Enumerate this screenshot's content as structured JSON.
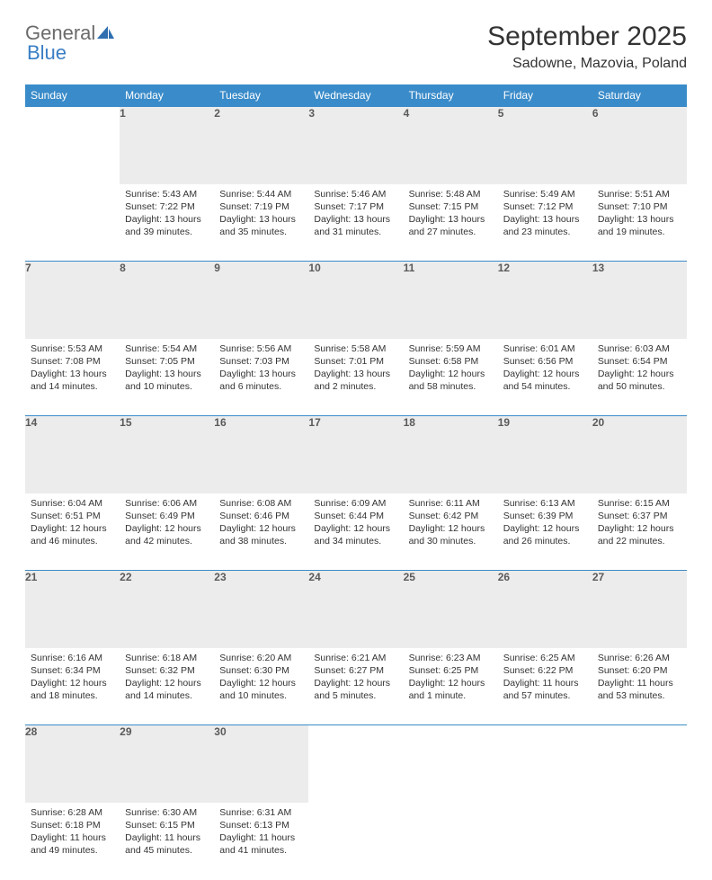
{
  "logo": {
    "part1": "General",
    "part2": "Blue"
  },
  "title": "September 2025",
  "location": "Sadowne, Mazovia, Poland",
  "colors": {
    "header_bg": "#3a8bc9",
    "header_text": "#ffffff",
    "daynum_bg": "#ececec",
    "daynum_text": "#5a5a5a",
    "body_text": "#333333",
    "border": "#3a8bc9",
    "logo_gray": "#6b6b6b",
    "logo_blue": "#3a7fc4"
  },
  "typography": {
    "title_fontsize": 30,
    "location_fontsize": 16,
    "weekday_fontsize": 12,
    "daynum_fontsize": 12,
    "cell_fontsize": 10.5
  },
  "weekdays": [
    "Sunday",
    "Monday",
    "Tuesday",
    "Wednesday",
    "Thursday",
    "Friday",
    "Saturday"
  ],
  "weeks": [
    {
      "nums": [
        "",
        "1",
        "2",
        "3",
        "4",
        "5",
        "6"
      ],
      "cells": [
        null,
        {
          "sunrise": "Sunrise: 5:43 AM",
          "sunset": "Sunset: 7:22 PM",
          "day1": "Daylight: 13 hours",
          "day2": "and 39 minutes."
        },
        {
          "sunrise": "Sunrise: 5:44 AM",
          "sunset": "Sunset: 7:19 PM",
          "day1": "Daylight: 13 hours",
          "day2": "and 35 minutes."
        },
        {
          "sunrise": "Sunrise: 5:46 AM",
          "sunset": "Sunset: 7:17 PM",
          "day1": "Daylight: 13 hours",
          "day2": "and 31 minutes."
        },
        {
          "sunrise": "Sunrise: 5:48 AM",
          "sunset": "Sunset: 7:15 PM",
          "day1": "Daylight: 13 hours",
          "day2": "and 27 minutes."
        },
        {
          "sunrise": "Sunrise: 5:49 AM",
          "sunset": "Sunset: 7:12 PM",
          "day1": "Daylight: 13 hours",
          "day2": "and 23 minutes."
        },
        {
          "sunrise": "Sunrise: 5:51 AM",
          "sunset": "Sunset: 7:10 PM",
          "day1": "Daylight: 13 hours",
          "day2": "and 19 minutes."
        }
      ]
    },
    {
      "nums": [
        "7",
        "8",
        "9",
        "10",
        "11",
        "12",
        "13"
      ],
      "cells": [
        {
          "sunrise": "Sunrise: 5:53 AM",
          "sunset": "Sunset: 7:08 PM",
          "day1": "Daylight: 13 hours",
          "day2": "and 14 minutes."
        },
        {
          "sunrise": "Sunrise: 5:54 AM",
          "sunset": "Sunset: 7:05 PM",
          "day1": "Daylight: 13 hours",
          "day2": "and 10 minutes."
        },
        {
          "sunrise": "Sunrise: 5:56 AM",
          "sunset": "Sunset: 7:03 PM",
          "day1": "Daylight: 13 hours",
          "day2": "and 6 minutes."
        },
        {
          "sunrise": "Sunrise: 5:58 AM",
          "sunset": "Sunset: 7:01 PM",
          "day1": "Daylight: 13 hours",
          "day2": "and 2 minutes."
        },
        {
          "sunrise": "Sunrise: 5:59 AM",
          "sunset": "Sunset: 6:58 PM",
          "day1": "Daylight: 12 hours",
          "day2": "and 58 minutes."
        },
        {
          "sunrise": "Sunrise: 6:01 AM",
          "sunset": "Sunset: 6:56 PM",
          "day1": "Daylight: 12 hours",
          "day2": "and 54 minutes."
        },
        {
          "sunrise": "Sunrise: 6:03 AM",
          "sunset": "Sunset: 6:54 PM",
          "day1": "Daylight: 12 hours",
          "day2": "and 50 minutes."
        }
      ]
    },
    {
      "nums": [
        "14",
        "15",
        "16",
        "17",
        "18",
        "19",
        "20"
      ],
      "cells": [
        {
          "sunrise": "Sunrise: 6:04 AM",
          "sunset": "Sunset: 6:51 PM",
          "day1": "Daylight: 12 hours",
          "day2": "and 46 minutes."
        },
        {
          "sunrise": "Sunrise: 6:06 AM",
          "sunset": "Sunset: 6:49 PM",
          "day1": "Daylight: 12 hours",
          "day2": "and 42 minutes."
        },
        {
          "sunrise": "Sunrise: 6:08 AM",
          "sunset": "Sunset: 6:46 PM",
          "day1": "Daylight: 12 hours",
          "day2": "and 38 minutes."
        },
        {
          "sunrise": "Sunrise: 6:09 AM",
          "sunset": "Sunset: 6:44 PM",
          "day1": "Daylight: 12 hours",
          "day2": "and 34 minutes."
        },
        {
          "sunrise": "Sunrise: 6:11 AM",
          "sunset": "Sunset: 6:42 PM",
          "day1": "Daylight: 12 hours",
          "day2": "and 30 minutes."
        },
        {
          "sunrise": "Sunrise: 6:13 AM",
          "sunset": "Sunset: 6:39 PM",
          "day1": "Daylight: 12 hours",
          "day2": "and 26 minutes."
        },
        {
          "sunrise": "Sunrise: 6:15 AM",
          "sunset": "Sunset: 6:37 PM",
          "day1": "Daylight: 12 hours",
          "day2": "and 22 minutes."
        }
      ]
    },
    {
      "nums": [
        "21",
        "22",
        "23",
        "24",
        "25",
        "26",
        "27"
      ],
      "cells": [
        {
          "sunrise": "Sunrise: 6:16 AM",
          "sunset": "Sunset: 6:34 PM",
          "day1": "Daylight: 12 hours",
          "day2": "and 18 minutes."
        },
        {
          "sunrise": "Sunrise: 6:18 AM",
          "sunset": "Sunset: 6:32 PM",
          "day1": "Daylight: 12 hours",
          "day2": "and 14 minutes."
        },
        {
          "sunrise": "Sunrise: 6:20 AM",
          "sunset": "Sunset: 6:30 PM",
          "day1": "Daylight: 12 hours",
          "day2": "and 10 minutes."
        },
        {
          "sunrise": "Sunrise: 6:21 AM",
          "sunset": "Sunset: 6:27 PM",
          "day1": "Daylight: 12 hours",
          "day2": "and 5 minutes."
        },
        {
          "sunrise": "Sunrise: 6:23 AM",
          "sunset": "Sunset: 6:25 PM",
          "day1": "Daylight: 12 hours",
          "day2": "and 1 minute."
        },
        {
          "sunrise": "Sunrise: 6:25 AM",
          "sunset": "Sunset: 6:22 PM",
          "day1": "Daylight: 11 hours",
          "day2": "and 57 minutes."
        },
        {
          "sunrise": "Sunrise: 6:26 AM",
          "sunset": "Sunset: 6:20 PM",
          "day1": "Daylight: 11 hours",
          "day2": "and 53 minutes."
        }
      ]
    },
    {
      "nums": [
        "28",
        "29",
        "30",
        "",
        "",
        "",
        ""
      ],
      "cells": [
        {
          "sunrise": "Sunrise: 6:28 AM",
          "sunset": "Sunset: 6:18 PM",
          "day1": "Daylight: 11 hours",
          "day2": "and 49 minutes."
        },
        {
          "sunrise": "Sunrise: 6:30 AM",
          "sunset": "Sunset: 6:15 PM",
          "day1": "Daylight: 11 hours",
          "day2": "and 45 minutes."
        },
        {
          "sunrise": "Sunrise: 6:31 AM",
          "sunset": "Sunset: 6:13 PM",
          "day1": "Daylight: 11 hours",
          "day2": "and 41 minutes."
        },
        null,
        null,
        null,
        null
      ]
    }
  ]
}
